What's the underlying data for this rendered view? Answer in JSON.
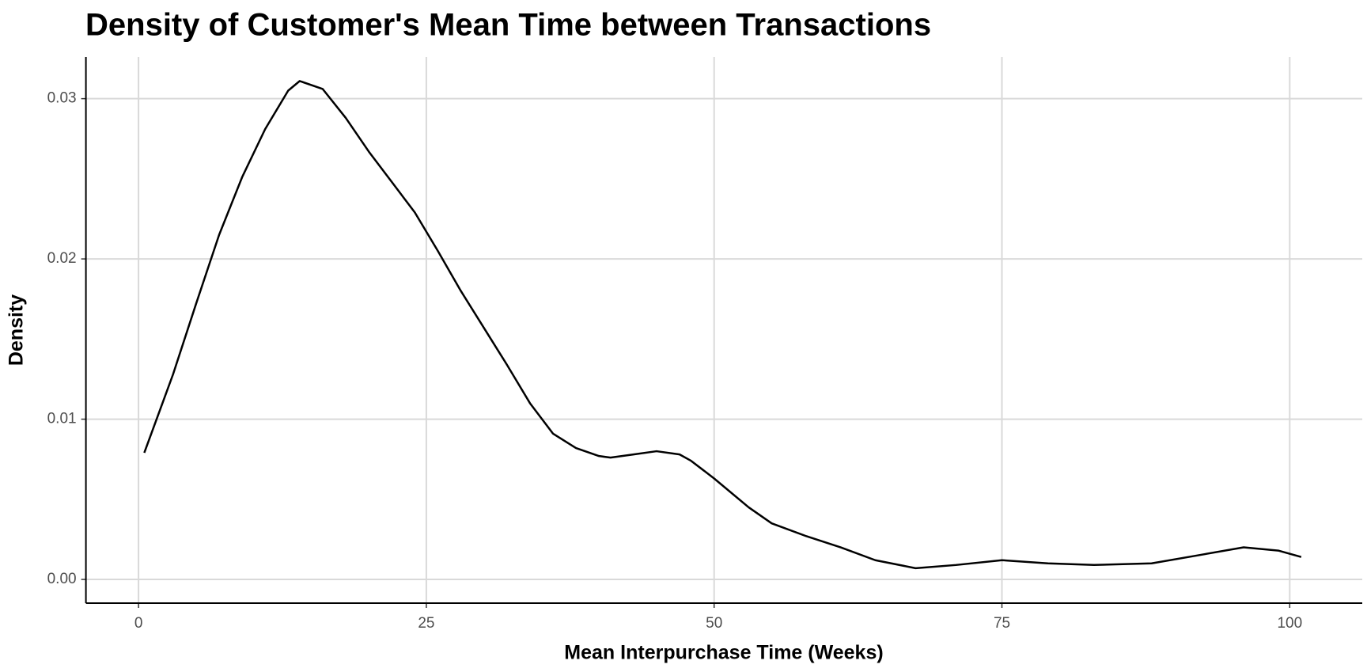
{
  "chart_data": {
    "type": "line",
    "title": "Density of Customer's Mean Time between Transactions",
    "x_label": "Mean Interpurchase Time (Weeks)",
    "y_label": "Density",
    "color": "#000000",
    "grid": true,
    "x": [
      0.5,
      3,
      5,
      7,
      9,
      11,
      13,
      14,
      16,
      18,
      20,
      22,
      24,
      26,
      28,
      30,
      32,
      34,
      36,
      38,
      40,
      41,
      43,
      45,
      47,
      48,
      50,
      53,
      55,
      58,
      61,
      64,
      67.5,
      71,
      75,
      79,
      83,
      88,
      92,
      96,
      99,
      101
    ],
    "values": [
      0.0079,
      0.0128,
      0.0172,
      0.0215,
      0.0251,
      0.0281,
      0.0305,
      0.0311,
      0.0306,
      0.0288,
      0.0267,
      0.0248,
      0.0229,
      0.0205,
      0.018,
      0.0157,
      0.0134,
      0.011,
      0.0091,
      0.0082,
      0.0077,
      0.0076,
      0.0078,
      0.008,
      0.0078,
      0.0074,
      0.0063,
      0.0045,
      0.0035,
      0.0027,
      0.002,
      0.0012,
      0.0007,
      0.0009,
      0.0012,
      0.001,
      0.0009,
      0.001,
      0.0015,
      0.002,
      0.0018,
      0.0014
    ],
    "xlim": [
      -4.57,
      106.3
    ],
    "ylim": [
      -0.00148,
      0.0326
    ],
    "xticks": [
      0,
      25,
      50,
      75,
      100
    ],
    "yticks": [
      {
        "value": 0,
        "label": "0.00"
      },
      {
        "value": 0.01,
        "label": "0.01"
      },
      {
        "value": 0.02,
        "label": "0.02"
      },
      {
        "value": 0.03,
        "label": "0.03"
      }
    ]
  }
}
